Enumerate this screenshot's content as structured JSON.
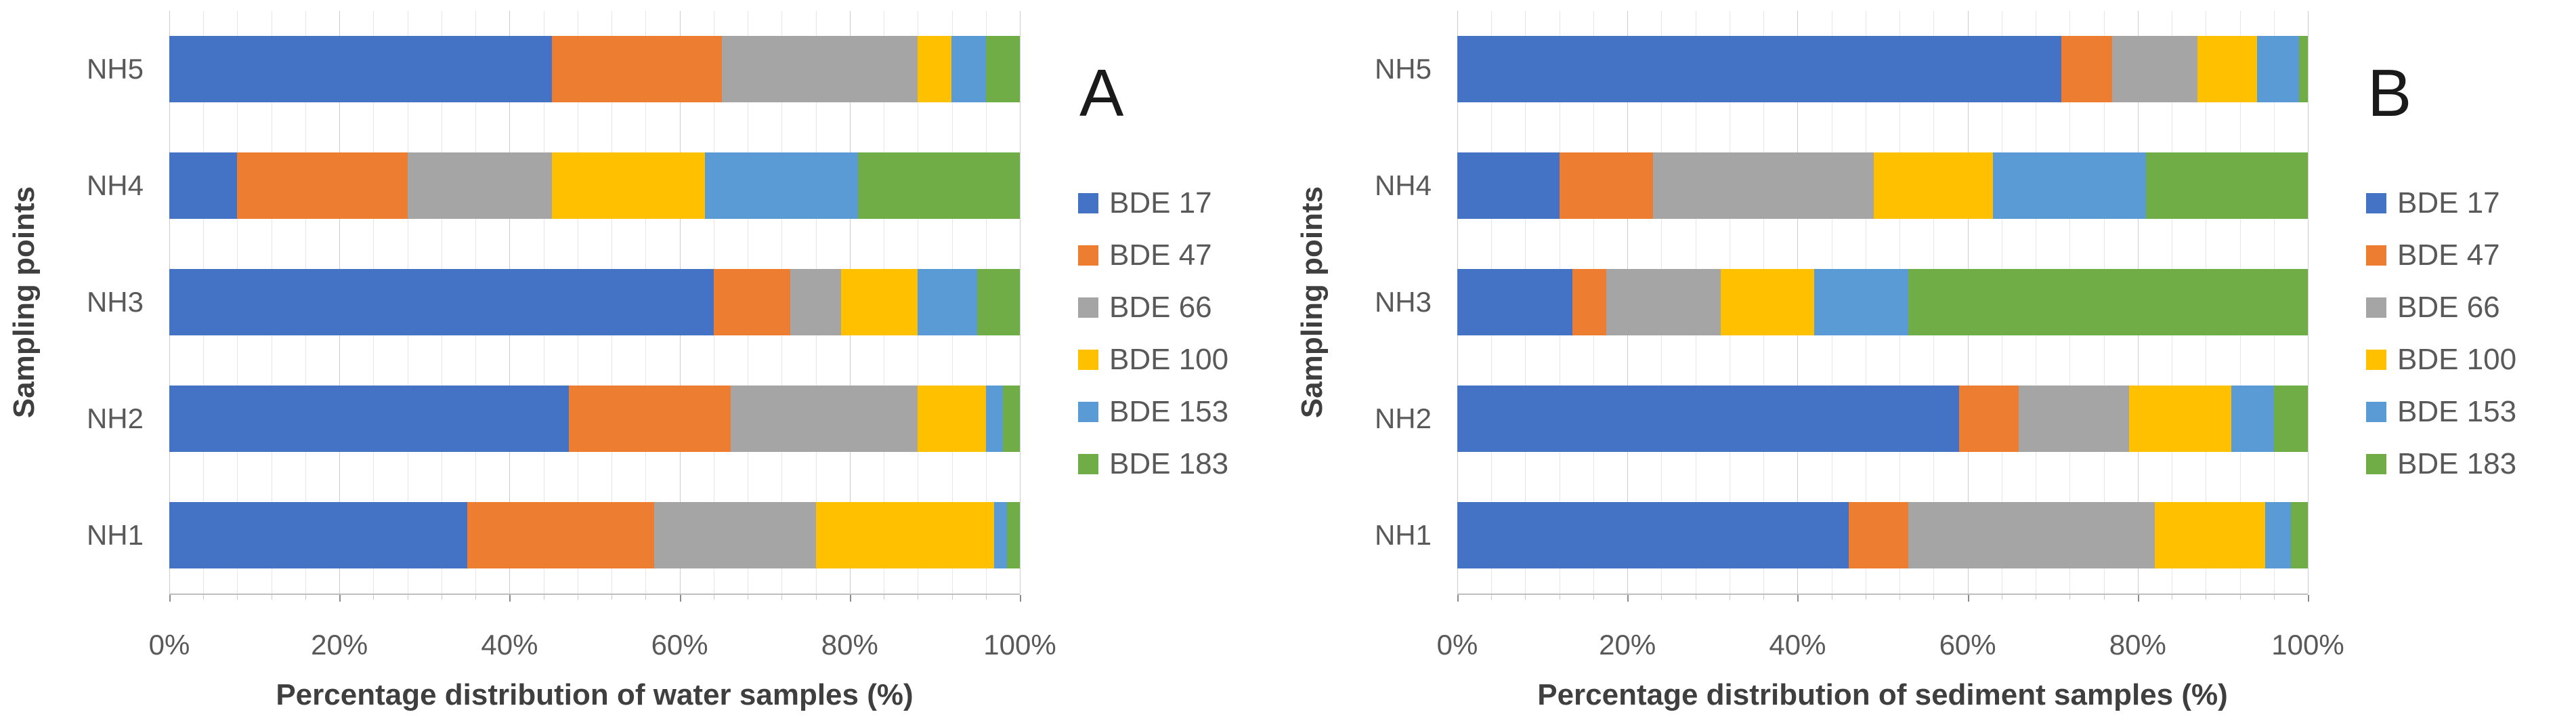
{
  "figure": {
    "background": "#ffffff",
    "text_color_ticks": "#595959",
    "text_color_titles": "#3f3f3f",
    "gridline_minor_step_pct": 4,
    "gridline_major_step_pct": 20
  },
  "series_colors": {
    "BDE 17": "#4472C4",
    "BDE 47": "#ED7D31",
    "BDE 66": "#A5A5A5",
    "BDE 100": "#FFC000",
    "BDE 153": "#5B9BD5",
    "BDE 183": "#70AD47"
  },
  "chart_data": [
    {
      "type": "bar",
      "orientation": "horizontal",
      "stacked": true,
      "panel_label": "A",
      "xlabel": "Percentage distribution of water samples (%)",
      "ylabel": "Sampling points",
      "categories": [
        "NH5",
        "NH4",
        "NH3",
        "NH2",
        "NH1"
      ],
      "x_ticks": [
        "0%",
        "20%",
        "40%",
        "60%",
        "80%",
        "100%"
      ],
      "xlim": [
        0,
        100
      ],
      "legend_position": "right",
      "legend": [
        "BDE 17",
        "BDE 47",
        "BDE 66",
        "BDE 100",
        "BDE 153",
        "BDE 183"
      ],
      "series": [
        {
          "name": "BDE 17",
          "color": "#4472C4",
          "values": [
            45,
            8,
            64,
            47,
            35
          ]
        },
        {
          "name": "BDE 47",
          "color": "#ED7D31",
          "values": [
            20,
            20,
            9,
            19,
            22
          ]
        },
        {
          "name": "BDE 66",
          "color": "#A5A5A5",
          "values": [
            23,
            17,
            6,
            22,
            19
          ]
        },
        {
          "name": "BDE 100",
          "color": "#FFC000",
          "values": [
            4,
            18,
            9,
            8,
            21
          ]
        },
        {
          "name": "BDE 153",
          "color": "#5B9BD5",
          "values": [
            4,
            18,
            7,
            2,
            1.5
          ]
        },
        {
          "name": "BDE 183",
          "color": "#70AD47",
          "values": [
            4,
            19,
            5,
            2,
            1.5
          ]
        }
      ]
    },
    {
      "type": "bar",
      "orientation": "horizontal",
      "stacked": true,
      "panel_label": "B",
      "xlabel": "Percentage distribution of sediment samples (%)",
      "ylabel": "Sampling points",
      "categories": [
        "NH5",
        "NH4",
        "NH3",
        "NH2",
        "NH1"
      ],
      "x_ticks": [
        "0%",
        "20%",
        "40%",
        "60%",
        "80%",
        "100%"
      ],
      "xlim": [
        0,
        100
      ],
      "legend_position": "right",
      "legend": [
        "BDE 17",
        "BDE 47",
        "BDE 66",
        "BDE 100",
        "BDE 153",
        "BDE 183"
      ],
      "series": [
        {
          "name": "BDE 17",
          "color": "#4472C4",
          "values": [
            71,
            12,
            13.5,
            59,
            46
          ]
        },
        {
          "name": "BDE 47",
          "color": "#ED7D31",
          "values": [
            6,
            11,
            4,
            7,
            7
          ]
        },
        {
          "name": "BDE 66",
          "color": "#A5A5A5",
          "values": [
            10,
            26,
            13.5,
            13,
            29
          ]
        },
        {
          "name": "BDE 100",
          "color": "#FFC000",
          "values": [
            7,
            14,
            11,
            12,
            13
          ]
        },
        {
          "name": "BDE 153",
          "color": "#5B9BD5",
          "values": [
            5,
            18,
            11,
            5,
            3
          ]
        },
        {
          "name": "BDE 183",
          "color": "#70AD47",
          "values": [
            1,
            19,
            47,
            4,
            2
          ]
        }
      ]
    }
  ]
}
